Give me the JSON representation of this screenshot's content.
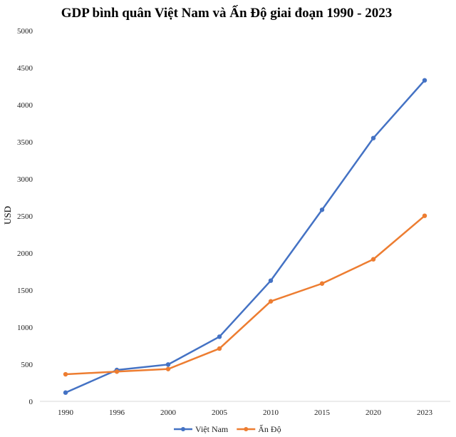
{
  "chart_data": {
    "type": "line",
    "title": "GDP bình quân Việt Nam và Ấn Độ giai đoạn 1990 - 2023",
    "xlabel": "",
    "ylabel": "USD",
    "categories": [
      "1990",
      "1996",
      "2000",
      "2005",
      "2010",
      "2015",
      "2020",
      "2023"
    ],
    "ylim": [
      0,
      5000
    ],
    "yticks": [
      "0",
      "500",
      "1000",
      "1500",
      "2000",
      "2500",
      "3000",
      "3500",
      "4000",
      "4500",
      "5000"
    ],
    "grid": false,
    "legend": "bottom",
    "series": [
      {
        "name": "Việt Nam",
        "color": "#4472C4",
        "values": [
          118,
          423,
          497,
          872,
          1628,
          2584,
          3551,
          4330
        ]
      },
      {
        "name": "Ấn Độ",
        "color": "#ED7D31",
        "values": [
          365,
          401,
          436,
          712,
          1349,
          1589,
          1916,
          2503
        ]
      }
    ]
  }
}
